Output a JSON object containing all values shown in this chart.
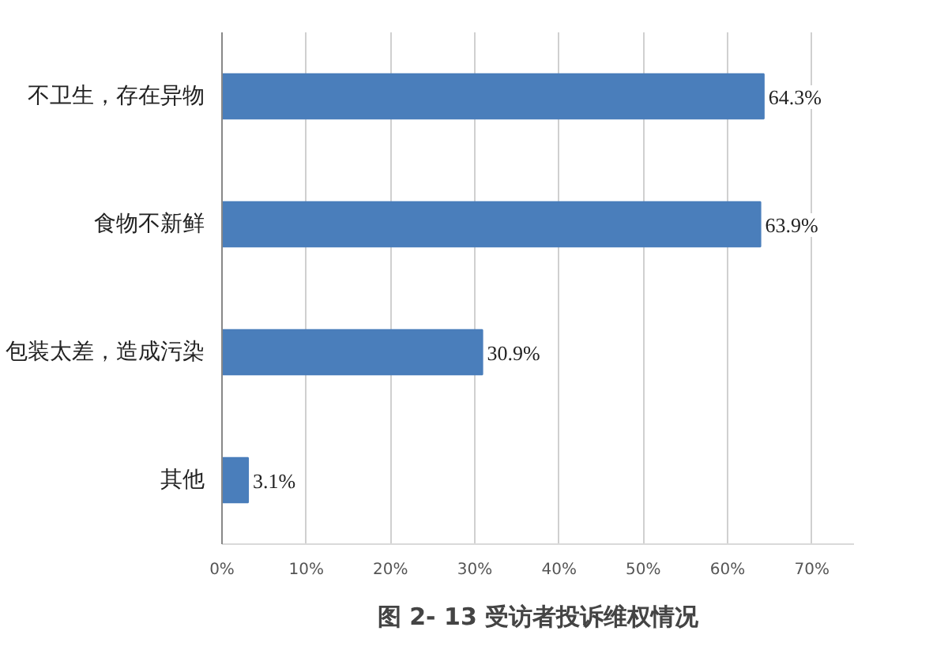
{
  "chart_data": {
    "type": "bar",
    "orientation": "horizontal",
    "title": "图 2- 13 受访者投诉维权情况",
    "categories": [
      "不卫生，存在异物",
      "食物不新鲜",
      "包装太差，造成污染",
      "其他"
    ],
    "values": [
      64.3,
      63.9,
      30.9,
      3.1
    ],
    "value_labels": [
      "64.3%",
      "63.9%",
      "30.9%",
      "3.1%"
    ],
    "color": "#4a7ebb",
    "xlim": [
      0,
      75
    ],
    "xticks": [
      {
        "value": 0,
        "label": "0%"
      },
      {
        "value": 10,
        "label": "10%"
      },
      {
        "value": 20,
        "label": "20%"
      },
      {
        "value": 30,
        "label": "30%"
      },
      {
        "value": 40,
        "label": "40%"
      },
      {
        "value": 50,
        "label": "50%"
      },
      {
        "value": 60,
        "label": "60%"
      },
      {
        "value": 70,
        "label": "70%"
      }
    ],
    "grid": "x"
  }
}
